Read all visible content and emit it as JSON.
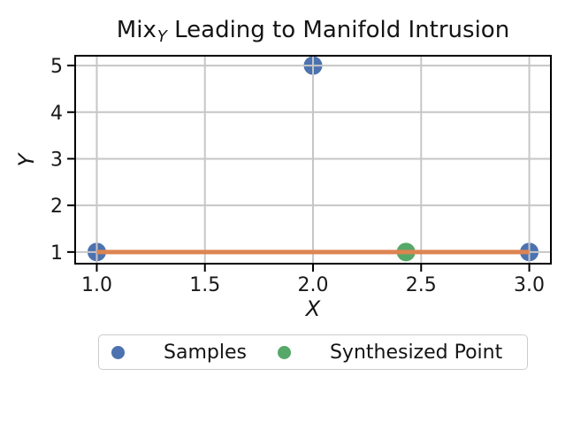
{
  "figure": {
    "title_full": "Mix_Y Leading to Manifold Intrusion"
  },
  "chart_data": {
    "type": "scatter",
    "title": "Mix_Y Leading to Manifold Intrusion",
    "title_parts": {
      "prefix": "Mix",
      "subscript": "Y",
      "suffix": " Leading to Manifold Intrusion"
    },
    "xlabel": "X",
    "ylabel": "Y",
    "xlim": [
      0.9,
      3.1
    ],
    "ylim": [
      0.75,
      5.21
    ],
    "grid": true,
    "xticks": {
      "values": [
        1.0,
        1.5,
        2.0,
        2.5,
        3.0
      ],
      "labels": [
        "1.0",
        "1.5",
        "2.0",
        "2.5",
        "3.0"
      ]
    },
    "yticks": {
      "values": [
        1,
        2,
        3,
        4,
        5
      ],
      "labels": [
        "1",
        "2",
        "3",
        "4",
        "5"
      ]
    },
    "series": [
      {
        "name": "Samples",
        "kind": "scatter",
        "color": "#4c72b0",
        "marker_radius": 10.5,
        "points": [
          [
            1.0,
            1.0
          ],
          [
            2.0,
            5.0
          ],
          [
            3.0,
            1.0
          ]
        ]
      },
      {
        "name": "Synthesized Point",
        "kind": "scatter",
        "color": "#55a868",
        "marker_radius": 10.5,
        "points": [
          [
            2.43,
            1.0
          ]
        ]
      },
      {
        "name": "Mix segment",
        "kind": "line",
        "color": "#dd8452",
        "linewidth": 5,
        "points": [
          [
            1.0,
            1.0
          ],
          [
            3.0,
            1.0
          ]
        ]
      }
    ],
    "legend": {
      "position": "below",
      "entries": [
        {
          "label": "Samples",
          "color": "#4c72b0"
        },
        {
          "label": "Synthesized Point",
          "color": "#55a868"
        }
      ]
    }
  },
  "colors": {
    "background": "#ffffff",
    "grid": "#c6c6c6",
    "spine": "#000000",
    "tick_text": "#191919",
    "legend_border": "#cccccc"
  }
}
